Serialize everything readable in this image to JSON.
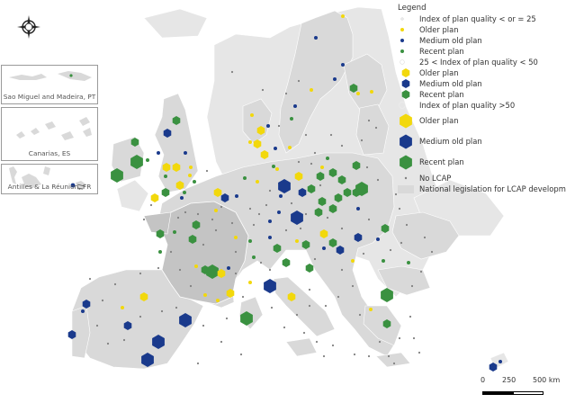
{
  "legend": {
    "title": "Legend",
    "group1": {
      "heading": "Index of plan quality < or = 25",
      "older": "Older plan",
      "medium": "Medium old plan",
      "recent": "Recent plan"
    },
    "group2": {
      "heading": "25 < Index of plan quality < 50",
      "older": "Older plan",
      "medium": "Medium old plan",
      "recent": "Recent plan"
    },
    "group3": {
      "heading": "Index of plan quality >50",
      "older": "Older plan",
      "medium": "Medium old plan",
      "recent": "Recent plan"
    },
    "no_lcap": "No LCAP",
    "national": "National legislation for LCAP development"
  },
  "insets": {
    "azores": "Sao Miguel and Madeira, PT",
    "canarias": "Canarias, ES",
    "antilles": "Antilles & La Réunion, FR"
  },
  "scale": {
    "zero": "0",
    "mid": "250",
    "max": "500 km"
  },
  "colors": {
    "older": "#f2d80c",
    "medium": "#1a3a8c",
    "recent": "#3a9140",
    "land": "#d9d9d9",
    "no_lcap": "#808080"
  },
  "icons": {
    "north_arrow": "compass-rose-icon"
  }
}
